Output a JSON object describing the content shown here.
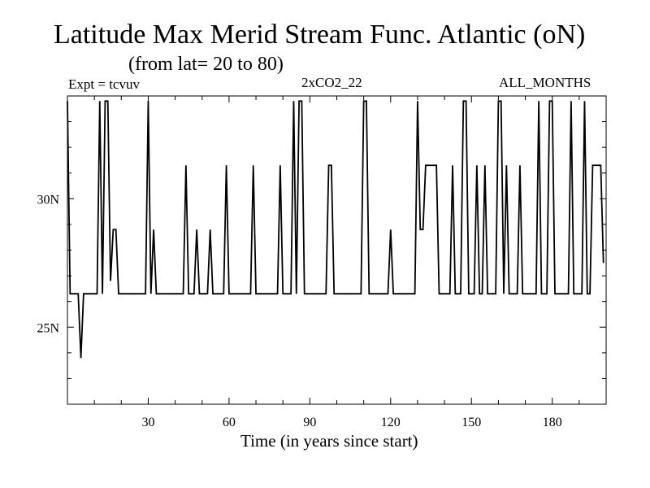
{
  "header": {
    "title": "Latitude Max Merid Stream Func. Atlantic (oN)",
    "subtitle": "(from lat= 20 to 80)",
    "experiment": "Expt = tcvuv",
    "run": "2xCO2_22",
    "period": "ALL_MONTHS"
  },
  "chart_data": {
    "type": "line",
    "title": "Latitude Max Merid Stream Func. Atlantic (oN)",
    "subtitle": "(from lat= 20 to 80)",
    "xlabel": "Time (in years since start)",
    "ylabel": "",
    "xlim": [
      0,
      200
    ],
    "ylim": [
      22,
      34
    ],
    "x_ticks": [
      30,
      60,
      90,
      120,
      150,
      180
    ],
    "x_tick_labels": [
      "30",
      "60",
      "90",
      "120",
      "150",
      "180"
    ],
    "y_ticks": [
      25,
      30
    ],
    "y_tick_labels": [
      "25N",
      "30N"
    ],
    "grid": false,
    "legend": "none",
    "series": [
      {
        "values": [
          [
            0,
            33.8
          ],
          [
            1,
            26.3
          ],
          [
            2,
            26.3
          ],
          [
            3,
            26.3
          ],
          [
            4,
            26.3
          ],
          [
            5,
            23.8
          ],
          [
            6,
            26.3
          ],
          [
            7,
            26.3
          ],
          [
            8,
            26.3
          ],
          [
            9,
            26.3
          ],
          [
            10,
            26.3
          ],
          [
            11,
            26.3
          ],
          [
            12,
            33.8
          ],
          [
            13,
            26.3
          ],
          [
            14,
            33.8
          ],
          [
            15,
            33.8
          ],
          [
            16,
            26.8
          ],
          [
            17,
            28.8
          ],
          [
            18,
            28.8
          ],
          [
            19,
            26.3
          ],
          [
            20,
            26.3
          ],
          [
            21,
            26.3
          ],
          [
            22,
            26.3
          ],
          [
            23,
            26.3
          ],
          [
            24,
            26.3
          ],
          [
            25,
            26.3
          ],
          [
            26,
            26.3
          ],
          [
            27,
            26.3
          ],
          [
            28,
            26.3
          ],
          [
            29,
            26.3
          ],
          [
            30,
            33.8
          ],
          [
            31,
            26.3
          ],
          [
            32,
            28.8
          ],
          [
            33,
            26.3
          ],
          [
            34,
            26.3
          ],
          [
            35,
            26.3
          ],
          [
            36,
            26.3
          ],
          [
            37,
            26.3
          ],
          [
            38,
            26.3
          ],
          [
            39,
            26.3
          ],
          [
            40,
            26.3
          ],
          [
            41,
            26.3
          ],
          [
            42,
            26.3
          ],
          [
            43,
            26.3
          ],
          [
            44,
            31.3
          ],
          [
            45,
            26.3
          ],
          [
            46,
            26.3
          ],
          [
            47,
            26.3
          ],
          [
            48,
            28.8
          ],
          [
            49,
            26.3
          ],
          [
            50,
            26.3
          ],
          [
            51,
            26.3
          ],
          [
            52,
            26.3
          ],
          [
            53,
            28.8
          ],
          [
            54,
            26.3
          ],
          [
            55,
            26.3
          ],
          [
            56,
            26.3
          ],
          [
            57,
            26.3
          ],
          [
            58,
            26.3
          ],
          [
            59,
            31.3
          ],
          [
            60,
            26.3
          ],
          [
            61,
            26.3
          ],
          [
            62,
            26.3
          ],
          [
            63,
            26.3
          ],
          [
            64,
            26.3
          ],
          [
            65,
            26.3
          ],
          [
            66,
            26.3
          ],
          [
            67,
            26.3
          ],
          [
            68,
            26.3
          ],
          [
            69,
            31.3
          ],
          [
            70,
            26.3
          ],
          [
            71,
            26.3
          ],
          [
            72,
            26.3
          ],
          [
            73,
            26.3
          ],
          [
            74,
            26.3
          ],
          [
            75,
            26.3
          ],
          [
            76,
            26.3
          ],
          [
            77,
            26.3
          ],
          [
            78,
            26.3
          ],
          [
            79,
            31.3
          ],
          [
            80,
            26.3
          ],
          [
            81,
            26.3
          ],
          [
            82,
            26.3
          ],
          [
            83,
            26.3
          ],
          [
            84,
            33.8
          ],
          [
            85,
            26.3
          ],
          [
            86,
            33.8
          ],
          [
            87,
            33.8
          ],
          [
            88,
            26.3
          ],
          [
            89,
            26.3
          ],
          [
            90,
            26.3
          ],
          [
            91,
            26.3
          ],
          [
            92,
            26.3
          ],
          [
            93,
            26.3
          ],
          [
            94,
            26.3
          ],
          [
            95,
            26.3
          ],
          [
            96,
            26.3
          ],
          [
            97,
            31.3
          ],
          [
            98,
            31.3
          ],
          [
            99,
            26.3
          ],
          [
            100,
            26.3
          ],
          [
            101,
            26.3
          ],
          [
            102,
            26.3
          ],
          [
            103,
            26.3
          ],
          [
            104,
            26.3
          ],
          [
            105,
            26.3
          ],
          [
            106,
            26.3
          ],
          [
            107,
            26.3
          ],
          [
            108,
            26.3
          ],
          [
            109,
            26.3
          ],
          [
            110,
            33.8
          ],
          [
            111,
            33.8
          ],
          [
            112,
            26.3
          ],
          [
            113,
            26.3
          ],
          [
            114,
            26.3
          ],
          [
            115,
            26.3
          ],
          [
            116,
            26.3
          ],
          [
            117,
            26.3
          ],
          [
            118,
            26.3
          ],
          [
            119,
            26.3
          ],
          [
            120,
            28.8
          ],
          [
            121,
            26.3
          ],
          [
            122,
            26.3
          ],
          [
            123,
            26.3
          ],
          [
            124,
            26.3
          ],
          [
            125,
            26.3
          ],
          [
            126,
            26.3
          ],
          [
            127,
            26.3
          ],
          [
            128,
            26.3
          ],
          [
            129,
            26.3
          ],
          [
            130,
            33.8
          ],
          [
            131,
            28.8
          ],
          [
            132,
            28.8
          ],
          [
            133,
            31.3
          ],
          [
            134,
            31.3
          ],
          [
            135,
            31.3
          ],
          [
            136,
            31.3
          ],
          [
            137,
            31.3
          ],
          [
            138,
            26.3
          ],
          [
            139,
            26.3
          ],
          [
            140,
            26.3
          ],
          [
            141,
            26.3
          ],
          [
            142,
            26.3
          ],
          [
            143,
            31.3
          ],
          [
            144,
            26.3
          ],
          [
            145,
            26.3
          ],
          [
            146,
            26.3
          ],
          [
            147,
            33.8
          ],
          [
            148,
            33.8
          ],
          [
            149,
            26.3
          ],
          [
            150,
            26.3
          ],
          [
            151,
            26.3
          ],
          [
            152,
            31.3
          ],
          [
            153,
            26.3
          ],
          [
            154,
            26.3
          ],
          [
            155,
            31.3
          ],
          [
            156,
            26.3
          ],
          [
            157,
            26.3
          ],
          [
            158,
            26.3
          ],
          [
            159,
            26.3
          ],
          [
            160,
            33.8
          ],
          [
            161,
            33.8
          ],
          [
            162,
            26.3
          ],
          [
            163,
            31.3
          ],
          [
            164,
            26.3
          ],
          [
            165,
            26.3
          ],
          [
            166,
            26.3
          ],
          [
            167,
            26.3
          ],
          [
            168,
            31.3
          ],
          [
            169,
            26.3
          ],
          [
            170,
            26.3
          ],
          [
            171,
            26.3
          ],
          [
            172,
            26.3
          ],
          [
            173,
            26.3
          ],
          [
            174,
            26.3
          ],
          [
            175,
            33.8
          ],
          [
            176,
            26.3
          ],
          [
            177,
            26.3
          ],
          [
            178,
            26.3
          ],
          [
            179,
            33.8
          ],
          [
            180,
            33.8
          ],
          [
            181,
            26.3
          ],
          [
            182,
            26.3
          ],
          [
            183,
            26.3
          ],
          [
            184,
            26.3
          ],
          [
            185,
            26.3
          ],
          [
            186,
            26.3
          ],
          [
            187,
            33.8
          ],
          [
            188,
            26.3
          ],
          [
            189,
            26.3
          ],
          [
            190,
            26.3
          ],
          [
            191,
            26.3
          ],
          [
            192,
            33.8
          ],
          [
            193,
            26.3
          ],
          [
            194,
            26.3
          ],
          [
            195,
            31.3
          ],
          [
            196,
            31.3
          ],
          [
            197,
            31.3
          ],
          [
            198,
            31.3
          ],
          [
            199,
            27.5
          ]
        ]
      }
    ]
  }
}
